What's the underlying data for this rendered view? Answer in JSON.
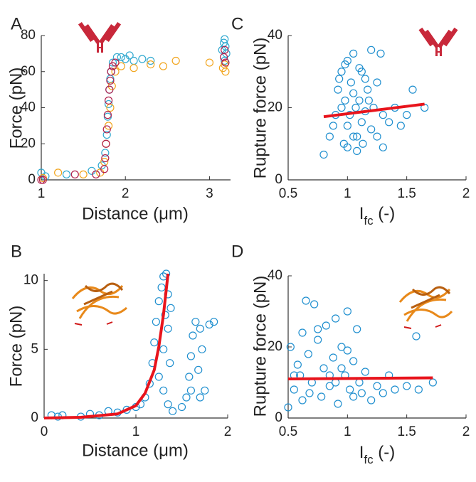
{
  "chart_data": [
    {
      "type": "scatter",
      "panel_label": "A",
      "xlabel": "Distance (μm)",
      "ylabel": "Force (pN)",
      "xlim": [
        1,
        3.25
      ],
      "ylim": [
        0,
        80
      ],
      "xticks": [
        1,
        2,
        3
      ],
      "yticks": [
        0,
        20,
        40,
        60,
        80
      ],
      "series": [
        {
          "color": "#31a9d0",
          "x": [
            1.0,
            1.05,
            1.3,
            1.6,
            1.72,
            1.76,
            1.78,
            1.79,
            1.8,
            1.81,
            1.82,
            1.83,
            1.85,
            1.9,
            1.95,
            2.0,
            2.05,
            2.1,
            2.2,
            2.3,
            3.15,
            3.17,
            3.18,
            3.19,
            3.2,
            3.18
          ],
          "y": [
            4,
            2,
            3,
            5,
            8,
            15,
            25,
            35,
            42,
            50,
            56,
            60,
            65,
            68,
            68,
            67,
            69,
            66,
            67,
            66,
            72,
            76,
            78,
            74,
            70,
            66
          ]
        },
        {
          "color": "#f2a51e",
          "x": [
            1.02,
            1.2,
            1.5,
            1.7,
            1.75,
            1.77,
            1.8,
            1.82,
            1.84,
            1.88,
            1.95,
            2.1,
            2.3,
            2.45,
            2.6,
            3.0,
            3.16,
            3.18,
            3.19
          ],
          "y": [
            1,
            4,
            3,
            4,
            10,
            20,
            30,
            40,
            52,
            60,
            63,
            62,
            64,
            63,
            66,
            65,
            62,
            64,
            60
          ]
        },
        {
          "color": "#b0214e",
          "x": [
            1.0,
            1.02,
            1.4,
            1.65,
            1.75,
            1.76,
            1.77,
            1.78,
            1.79,
            1.8,
            1.81,
            1.82,
            1.83,
            1.85,
            1.88,
            3.17,
            3.18,
            3.19
          ],
          "y": [
            0,
            0,
            3,
            3,
            6,
            12,
            20,
            28,
            36,
            44,
            50,
            55,
            60,
            63,
            65,
            68,
            72,
            65
          ]
        }
      ]
    },
    {
      "type": "scatter",
      "panel_label": "B",
      "xlabel": "Distance (μm)",
      "ylabel": "Force (pN)",
      "xlim": [
        0,
        2
      ],
      "ylim": [
        0,
        10.5
      ],
      "xticks": [
        0,
        1,
        2
      ],
      "yticks": [
        0,
        5,
        10
      ],
      "series": [
        {
          "color": "#1f8fcf",
          "x": [
            0.08,
            0.15,
            0.2,
            0.4,
            0.5,
            0.6,
            0.7,
            0.8,
            0.9,
            1.0,
            1.05,
            1.1,
            1.15,
            1.18,
            1.2,
            1.22,
            1.25,
            1.28,
            1.3,
            1.33,
            1.35,
            1.38,
            1.35,
            1.3,
            1.37,
            1.32,
            1.25,
            1.3,
            1.35,
            1.4,
            1.5,
            1.55,
            1.58,
            1.6,
            1.62,
            1.65,
            1.7,
            1.72,
            1.68,
            1.75,
            1.8,
            1.85,
            1.6,
            1.7
          ],
          "y": [
            0.2,
            0.1,
            0.2,
            0.1,
            0.3,
            0.2,
            0.5,
            0.4,
            0.6,
            0.8,
            1.0,
            1.5,
            2.5,
            4,
            5.5,
            7,
            8.5,
            9.5,
            10.3,
            10.5,
            9,
            8,
            6.5,
            5,
            4,
            7.5,
            3,
            2,
            1,
            0.5,
            0.8,
            1.5,
            3,
            4.5,
            6,
            7,
            6.5,
            5,
            3.5,
            2,
            6.8,
            7,
            2,
            1.5
          ]
        }
      ],
      "fit": {
        "color": "#e8141c",
        "x": [
          0,
          0.4,
          0.8,
          1.0,
          1.1,
          1.2,
          1.25,
          1.3,
          1.35
        ],
        "y": [
          0,
          0.05,
          0.3,
          0.9,
          1.8,
          3.5,
          5.2,
          7.5,
          10.5
        ]
      }
    },
    {
      "type": "scatter",
      "panel_label": "C",
      "xlabel": [
        "I",
        "fc",
        " (-)"
      ],
      "ylabel": "Rupture force (pN)",
      "xlim": [
        0.5,
        2
      ],
      "ylim": [
        0,
        40
      ],
      "xticks": [
        0.5,
        1,
        1.5,
        2
      ],
      "yticks": [
        0,
        20,
        40
      ],
      "series": [
        {
          "color": "#1f8fcf",
          "x": [
            0.8,
            0.85,
            0.88,
            0.9,
            0.92,
            0.95,
            0.95,
            0.97,
            0.98,
            1.0,
            1.0,
            1.02,
            1.03,
            1.05,
            1.05,
            1.07,
            1.08,
            1.1,
            1.1,
            1.12,
            1.13,
            1.15,
            1.15,
            1.17,
            1.2,
            1.2,
            1.22,
            1.25,
            1.25,
            1.28,
            1.3,
            1.35,
            1.4,
            1.45,
            1.5,
            1.55,
            1.65,
            0.93,
            1.0,
            1.08,
            1.18,
            0.98,
            1.05,
            1.12,
            1.3
          ],
          "y": [
            7,
            12,
            15,
            18,
            25,
            20,
            30,
            10,
            22,
            33,
            15,
            18,
            27,
            12,
            35,
            20,
            8,
            22,
            31,
            16,
            10,
            28,
            19,
            25,
            14,
            36,
            20,
            12,
            27,
            35,
            18,
            16,
            20,
            15,
            18,
            25,
            20,
            28,
            9,
            12,
            22,
            32,
            24,
            30,
            9
          ]
        }
      ],
      "fit": {
        "color": "#e8141c",
        "x": [
          0.8,
          1.65
        ],
        "y": [
          17.5,
          21
        ]
      }
    },
    {
      "type": "scatter",
      "panel_label": "D",
      "xlabel": [
        "I",
        "fc",
        " (-)"
      ],
      "ylabel": "Rupture force (pN)",
      "xlim": [
        0.5,
        2
      ],
      "ylim": [
        0,
        40
      ],
      "xticks": [
        0.5,
        1,
        1.5,
        2
      ],
      "yticks": [
        0,
        20,
        40
      ],
      "series": [
        {
          "color": "#1f8fcf",
          "x": [
            0.5,
            0.52,
            0.55,
            0.58,
            0.6,
            0.62,
            0.65,
            0.67,
            0.7,
            0.72,
            0.75,
            0.78,
            0.8,
            0.82,
            0.85,
            0.88,
            0.9,
            0.92,
            0.95,
            0.98,
            1.0,
            1.02,
            1.05,
            1.08,
            1.1,
            1.12,
            1.15,
            1.2,
            1.25,
            1.3,
            1.35,
            1.4,
            1.5,
            1.58,
            1.6,
            1.72,
            0.55,
            0.68,
            0.75,
            0.85,
            0.95,
            1.05,
            0.62,
            0.9,
            1.0
          ],
          "y": [
            3,
            20,
            8,
            15,
            12,
            5,
            33,
            18,
            10,
            32,
            22,
            6,
            14,
            26,
            9,
            17,
            28,
            4,
            20,
            12,
            30,
            8,
            16,
            25,
            10,
            7,
            13,
            5,
            9,
            7,
            12,
            8,
            9,
            23,
            8,
            10,
            12,
            7,
            25,
            12,
            14,
            6,
            24,
            10,
            19
          ]
        }
      ],
      "fit": {
        "color": "#e8141c",
        "x": [
          0.5,
          1.72
        ],
        "y": [
          11,
          11.3
        ]
      }
    }
  ]
}
